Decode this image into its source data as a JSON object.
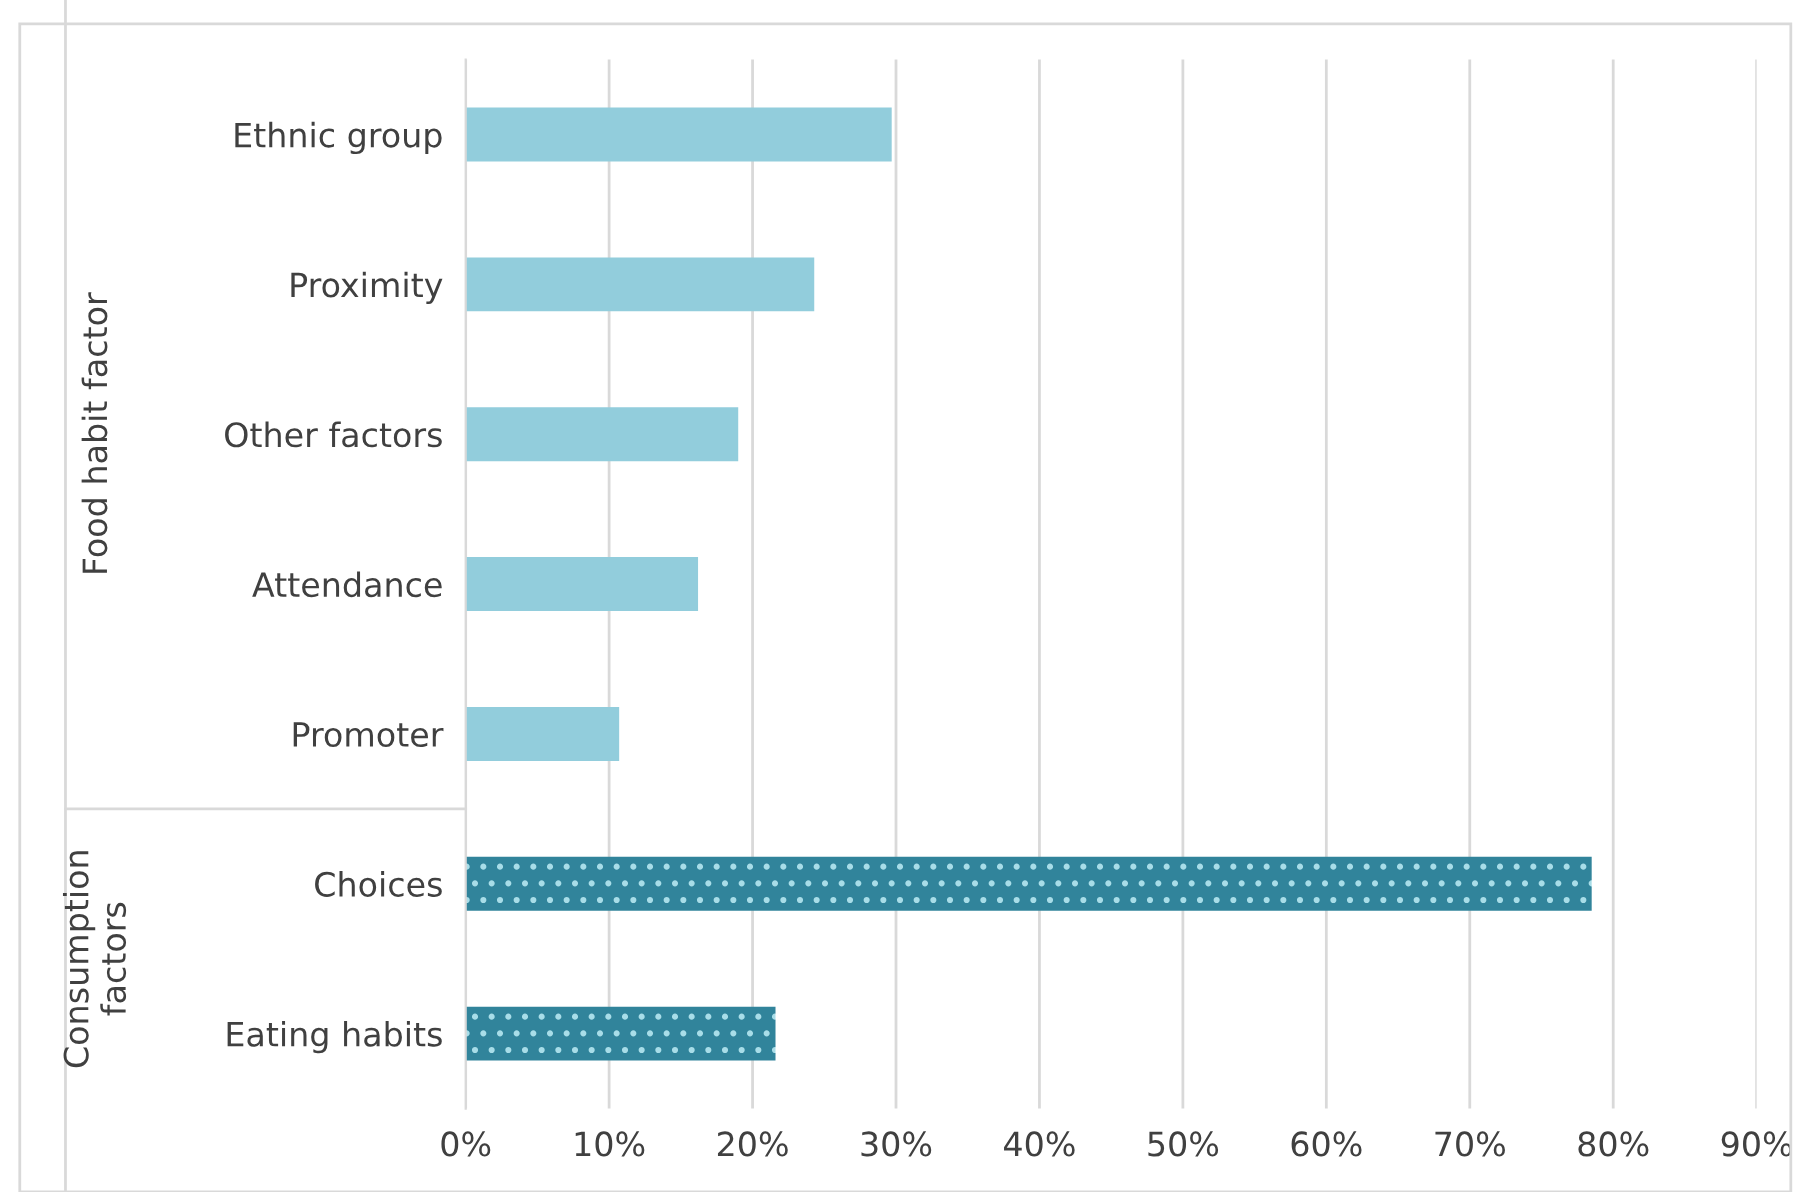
{
  "chart_data": {
    "type": "bar",
    "orientation": "horizontal",
    "categories": [
      "Ethnic group",
      "Proximity",
      "Other factors",
      "Attendance",
      "Promoter",
      "Choices",
      "Eating habits"
    ],
    "values": [
      29.7,
      24.3,
      19.0,
      16.2,
      10.7,
      78.5,
      21.6
    ],
    "colors": [
      "#92cddc",
      "#92cddc",
      "#92cddc",
      "#92cddc",
      "#92cddc",
      "#31849b",
      "#31849b"
    ],
    "xlim": [
      0,
      90
    ],
    "xticks": [
      {
        "value": 0,
        "label": "0%"
      },
      {
        "value": 10,
        "label": "10%"
      },
      {
        "value": 20,
        "label": "20%"
      },
      {
        "value": 30,
        "label": "30%"
      },
      {
        "value": 40,
        "label": "40%"
      },
      {
        "value": 50,
        "label": "50%"
      },
      {
        "value": 60,
        "label": "60%"
      },
      {
        "value": 70,
        "label": "70%"
      },
      {
        "value": 80,
        "label": "80%"
      },
      {
        "value": 90,
        "label": "90%"
      }
    ],
    "grid": "x",
    "annotations": [
      "Food habit factor",
      "Consumption\nfactors"
    ]
  }
}
